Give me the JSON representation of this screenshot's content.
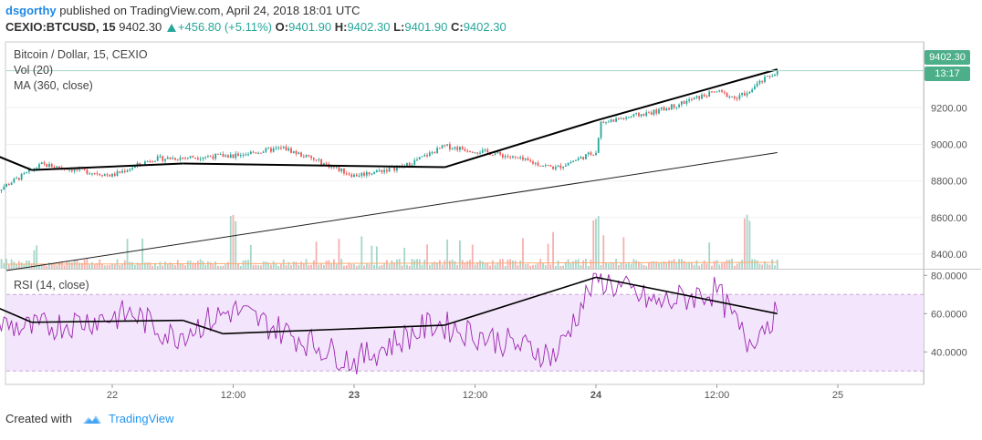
{
  "header": {
    "user": "dsgorthy",
    "published": "published on TradingView.com, April 24, 2018 18:01 UTC",
    "symbol": "CEXIO:BTCUSD, 15",
    "last": "9402.30",
    "change": "+456.80 (+5.11%)",
    "o_label": "O:",
    "o_value": "9401.90",
    "h_label": "H:",
    "h_value": "9402.30",
    "l_label": "L:",
    "l_value": "9401.90",
    "c_label": "C:",
    "c_value": "9402.30"
  },
  "legends": {
    "main": "Bitcoin / Dollar, 15, CEXIO",
    "vol": "Vol (20)",
    "ma": "MA (360, close)",
    "rsi": "RSI (14, close)"
  },
  "price_tag": {
    "price": "9402.30",
    "countdown": "13:17"
  },
  "footer": {
    "created": "Created with",
    "brand": "TradingView"
  },
  "colors": {
    "up": "#26a69a",
    "down": "#ef5350",
    "rsi_line": "#9c27b0",
    "rsi_band": "#f3e5fb",
    "ma_line": "#222222",
    "tag_bg": "#4caf8a"
  },
  "chart_data": [
    {
      "type": "candlestick",
      "title": "Bitcoin / Dollar, 15, CEXIO",
      "y_ticks": [
        "8400.00",
        "8600.00",
        "8800.00",
        "9000.00",
        "9200.00"
      ],
      "ylim": [
        8320,
        9560
      ],
      "x_ticks": [
        "22",
        "12:00",
        "23",
        "12:00",
        "24",
        "12:00",
        "25"
      ],
      "price_key_points": [
        {
          "t": "Apr 21 12:00",
          "price": 8730
        },
        {
          "t": "Apr 21 17:00",
          "price": 8890
        },
        {
          "t": "Apr 22 00:00",
          "price": 8830
        },
        {
          "t": "Apr 22 04:00",
          "price": 8920
        },
        {
          "t": "Apr 22 12:00",
          "price": 8940
        },
        {
          "t": "Apr 22 17:00",
          "price": 8980
        },
        {
          "t": "Apr 23 00:00",
          "price": 8830
        },
        {
          "t": "Apr 23 05:00",
          "price": 8880
        },
        {
          "t": "Apr 23 09:00",
          "price": 8990
        },
        {
          "t": "Apr 23 14:00",
          "price": 8950
        },
        {
          "t": "Apr 23 20:00",
          "price": 8870
        },
        {
          "t": "Apr 24 00:00",
          "price": 8960
        },
        {
          "t": "Apr 24 00:30",
          "price": 9120
        },
        {
          "t": "Apr 24 06:00",
          "price": 9180
        },
        {
          "t": "Apr 24 12:00",
          "price": 9290
        },
        {
          "t": "Apr 24 14:00",
          "price": 9250
        },
        {
          "t": "Apr 24 18:00",
          "price": 9402.3
        }
      ],
      "ma_360": {
        "start": 8310,
        "end": 8955
      },
      "volume_spike_times": [
        "Apr 22 12:00",
        "Apr 24 00:00",
        "Apr 24 15:00"
      ],
      "trendlines": [
        [
          {
            "t": "Apr 21 12:00",
            "p": 8950
          },
          {
            "t": "Apr 21 16:00",
            "p": 8860
          }
        ],
        [
          {
            "t": "Apr 21 16:00",
            "p": 8860
          },
          {
            "t": "Apr 22 07:00",
            "p": 8895
          }
        ],
        [
          {
            "t": "Apr 22 07:00",
            "p": 8895
          },
          {
            "t": "Apr 23 09:00",
            "p": 8875
          }
        ],
        [
          {
            "t": "Apr 23 09:00",
            "p": 8875
          },
          {
            "t": "Apr 24 00:00",
            "p": 9130
          }
        ],
        [
          {
            "t": "Apr 24 00:00",
            "p": 9130
          },
          {
            "t": "Apr 24 18:00",
            "p": 9410
          }
        ]
      ]
    },
    {
      "type": "line",
      "title": "RSI (14, close)",
      "y_ticks": [
        "40.0000",
        "60.0000",
        "80.0000"
      ],
      "ylim": [
        23,
        83
      ],
      "band": [
        30,
        70
      ],
      "rsi_key_points": [
        {
          "t": "Apr 21 12:00",
          "v": 55
        },
        {
          "t": "Apr 21 16:00",
          "v": 52
        },
        {
          "t": "Apr 22 02:00",
          "v": 60
        },
        {
          "t": "Apr 22 06:00",
          "v": 48
        },
        {
          "t": "Apr 22 12:00",
          "v": 62
        },
        {
          "t": "Apr 23 00:00",
          "v": 35
        },
        {
          "t": "Apr 23 08:00",
          "v": 55
        },
        {
          "t": "Apr 23 20:00",
          "v": 38
        },
        {
          "t": "Apr 24 00:00",
          "v": 79
        },
        {
          "t": "Apr 24 06:00",
          "v": 65
        },
        {
          "t": "Apr 24 12:00",
          "v": 72
        },
        {
          "t": "Apr 24 15:00",
          "v": 45
        },
        {
          "t": "Apr 24 18:00",
          "v": 61
        }
      ],
      "trendlines": [
        [
          {
            "t": "Apr 21 12:00",
            "v": 64.5
          },
          {
            "t": "Apr 21 16:00",
            "v": 55.5
          }
        ],
        [
          {
            "t": "Apr 21 16:00",
            "v": 55.5
          },
          {
            "t": "Apr 22 07:00",
            "v": 56.5
          }
        ],
        [
          {
            "t": "Apr 22 07:00",
            "v": 56.5
          },
          {
            "t": "Apr 22 11:00",
            "v": 49.5
          }
        ],
        [
          {
            "t": "Apr 22 11:00",
            "v": 49.5
          },
          {
            "t": "Apr 23 09:00",
            "v": 54
          }
        ],
        [
          {
            "t": "Apr 23 09:00",
            "v": 54
          },
          {
            "t": "Apr 24 00:00",
            "v": 79
          }
        ],
        [
          {
            "t": "Apr 24 00:00",
            "v": 79
          },
          {
            "t": "Apr 24 18:00",
            "v": 60
          }
        ]
      ]
    }
  ]
}
